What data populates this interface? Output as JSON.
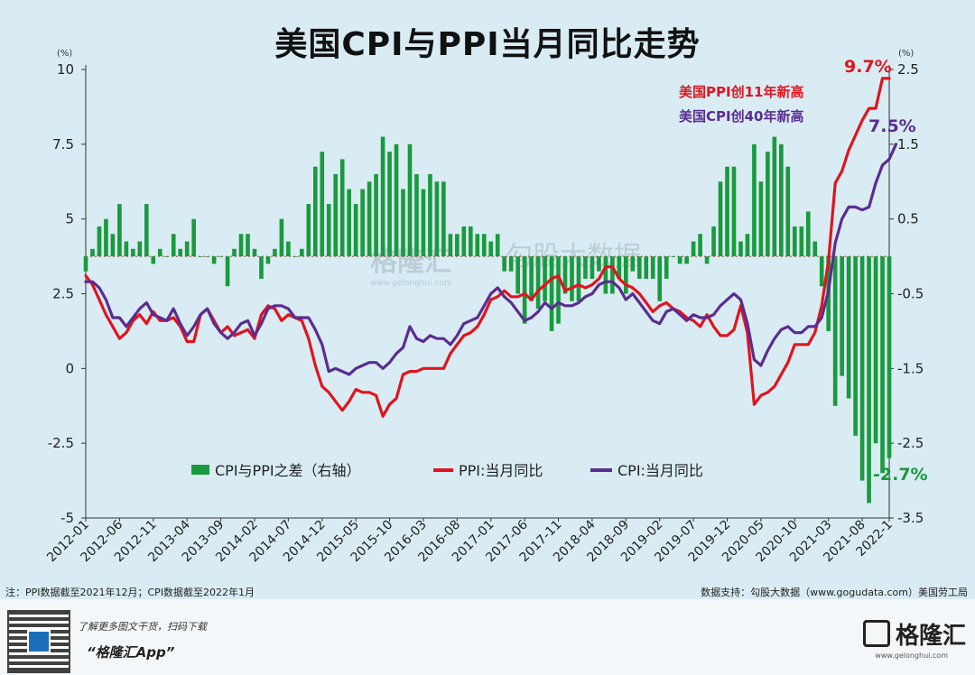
{
  "title": "美国CPI与PPI当月同比走势",
  "watermark": {
    "left": "格隆汇",
    "left_sub": "www.gelonghui.com",
    "right": "勾股大数据"
  },
  "left_axis": {
    "unit": "(%)",
    "ticks": [
      {
        "v": 10,
        "label": "10"
      },
      {
        "v": 7.5,
        "label": "7.5"
      },
      {
        "v": 5,
        "label": "5"
      },
      {
        "v": 2.5,
        "label": "2.5"
      },
      {
        "v": 0,
        "label": "0"
      },
      {
        "v": -2.5,
        "label": "-2.5"
      },
      {
        "v": -5,
        "label": "-5"
      }
    ]
  },
  "right_axis": {
    "unit": "(%)",
    "ticks": [
      {
        "v": 2.5,
        "label": "2.5"
      },
      {
        "v": 1.5,
        "label": "1.5"
      },
      {
        "v": 0.5,
        "label": "0.5"
      },
      {
        "v": -0.5,
        "label": "-0.5"
      },
      {
        "v": -1.5,
        "label": "-1.5"
      },
      {
        "v": -2.5,
        "label": "-2.5"
      },
      {
        "v": -3.5,
        "label": "-3.5"
      }
    ]
  },
  "annotations": {
    "ppi_end": "9.7%",
    "cpi_end": "7.5%",
    "diff_end": "-2.7%",
    "ppi_note": "美国PPI创11年新高",
    "cpi_note": "美国CPI创40年新高"
  },
  "note": "注：PPI数据截至2021年12月；CPI数据截至2022年1月",
  "source": "数据支持：勾股大数据（www.gogudata.com）美国劳工局",
  "footer": {
    "promo_line1": "了解更多图文干货，扫码下载",
    "promo_line2": "“格隆汇App”",
    "brand": "格隆汇",
    "brand_url": "www.gelonghui.com"
  },
  "colors": {
    "ppi": "#e0141e",
    "cpi": "#5a2d91",
    "diff": "#1a9a3e",
    "background": "#d9ecf3"
  },
  "chart_data": {
    "type": "line",
    "x_axis_labels": [
      "2012-01",
      "2012-06",
      "2012-11",
      "2013-04",
      "2013-09",
      "2014-02",
      "2014-07",
      "2014-12",
      "2015-05",
      "2015-10",
      "2016-03",
      "2016-08",
      "2017-01",
      "2017-06",
      "2017-11",
      "2018-04",
      "2018-09",
      "2019-02",
      "2019-07",
      "2019-12",
      "2020-05",
      "2020-10",
      "2021-03",
      "2021-08",
      "2022-1"
    ],
    "left_ylim": [
      -5,
      10
    ],
    "right_ylim": [
      -3.5,
      2.5
    ],
    "legend": [
      "CPI与PPI之差（右轴）",
      "PPI:当月同比",
      "CPI:当月同比"
    ],
    "legend_position": "bottom-center",
    "grid": false,
    "series": [
      {
        "name": "PPI:当月同比",
        "axis": "left",
        "start": "2012-01",
        "values": [
          3.1,
          2.8,
          2.3,
          1.8,
          1.4,
          1.0,
          1.2,
          1.6,
          1.8,
          1.5,
          1.9,
          1.6,
          1.6,
          1.7,
          1.4,
          0.9,
          0.9,
          1.8,
          2.0,
          1.6,
          1.2,
          1.4,
          1.1,
          1.2,
          1.3,
          1.0,
          1.8,
          2.1,
          2.0,
          1.6,
          1.8,
          1.7,
          1.6,
          1.0,
          0.1,
          -0.6,
          -0.8,
          -1.1,
          -1.4,
          -1.1,
          -0.7,
          -0.8,
          -0.8,
          -0.9,
          -1.6,
          -1.2,
          -1.0,
          -0.2,
          -0.1,
          -0.1,
          0.0,
          0.0,
          0.0,
          0.0,
          0.5,
          0.8,
          1.1,
          1.2,
          1.4,
          1.8,
          2.3,
          2.4,
          2.6,
          2.4,
          2.4,
          2.5,
          2.3,
          2.6,
          2.8,
          3.0,
          3.1,
          2.6,
          2.7,
          2.8,
          2.7,
          2.8,
          3.0,
          3.4,
          3.4,
          3.0,
          2.8,
          2.7,
          2.5,
          2.2,
          1.9,
          2.1,
          2.2,
          2.0,
          1.9,
          1.7,
          1.6,
          1.4,
          1.8,
          1.4,
          1.1,
          1.1,
          1.3,
          2.1,
          1.2,
          -1.2,
          -0.9,
          -0.8,
          -0.6,
          -0.2,
          0.2,
          0.8,
          0.8,
          0.8,
          1.2,
          2.1,
          3.6,
          6.2,
          6.6,
          7.3,
          7.8,
          8.3,
          8.7,
          8.7,
          9.7,
          9.7
        ]
      },
      {
        "name": "CPI:当月同比",
        "axis": "left",
        "start": "2012-01",
        "values": [
          2.9,
          2.9,
          2.7,
          2.3,
          1.7,
          1.7,
          1.4,
          1.7,
          2.0,
          2.2,
          1.8,
          1.7,
          1.6,
          2.0,
          1.5,
          1.1,
          1.4,
          1.8,
          2.0,
          1.5,
          1.2,
          1.0,
          1.2,
          1.5,
          1.6,
          1.1,
          1.5,
          2.0,
          2.1,
          2.1,
          2.0,
          1.7,
          1.7,
          1.7,
          1.3,
          0.8,
          -0.1,
          0.0,
          -0.1,
          -0.2,
          0.0,
          0.1,
          0.2,
          0.2,
          0.0,
          0.2,
          0.5,
          0.7,
          1.4,
          1.0,
          0.9,
          1.1,
          1.0,
          1.0,
          0.8,
          1.1,
          1.5,
          1.6,
          1.7,
          2.1,
          2.5,
          2.7,
          2.4,
          2.2,
          1.9,
          1.6,
          1.7,
          1.9,
          2.2,
          2.0,
          2.2,
          2.1,
          2.1,
          2.2,
          2.4,
          2.5,
          2.8,
          2.9,
          2.9,
          2.7,
          2.3,
          2.5,
          2.2,
          1.9,
          1.6,
          1.5,
          1.9,
          2.0,
          1.8,
          1.6,
          1.8,
          1.7,
          1.7,
          1.8,
          2.1,
          2.3,
          2.5,
          2.3,
          1.5,
          0.3,
          0.1,
          0.6,
          1.0,
          1.3,
          1.4,
          1.2,
          1.2,
          1.4,
          1.4,
          1.7,
          2.6,
          4.2,
          5.0,
          5.4,
          5.4,
          5.3,
          5.4,
          6.2,
          6.8,
          7.0,
          7.5
        ]
      },
      {
        "name": "CPI与PPI之差（右轴）",
        "axis": "right",
        "kind": "bar",
        "start": "2012-01",
        "values": [
          -0.2,
          0.1,
          0.4,
          0.5,
          0.3,
          0.7,
          0.2,
          0.1,
          0.2,
          0.7,
          -0.1,
          0.1,
          0.0,
          0.3,
          0.1,
          0.2,
          0.5,
          0.0,
          0.0,
          -0.1,
          0.0,
          -0.4,
          0.1,
          0.3,
          0.3,
          0.1,
          -0.3,
          -0.1,
          0.1,
          0.5,
          0.2,
          0.0,
          0.1,
          0.7,
          1.2,
          1.4,
          0.7,
          1.1,
          1.3,
          0.9,
          0.7,
          0.9,
          1.0,
          1.1,
          1.6,
          1.4,
          1.5,
          0.9,
          1.5,
          1.1,
          0.9,
          1.1,
          1.0,
          1.0,
          0.3,
          0.3,
          0.4,
          0.4,
          0.3,
          0.3,
          0.2,
          0.3,
          -0.2,
          -0.2,
          -0.5,
          -0.9,
          -0.6,
          -0.7,
          -0.6,
          -1.0,
          -0.9,
          -0.5,
          -0.6,
          -0.6,
          -0.3,
          -0.3,
          -0.2,
          -0.5,
          -0.5,
          -0.3,
          -0.5,
          -0.2,
          -0.3,
          -0.3,
          -0.3,
          -0.6,
          -0.3,
          0.0,
          -0.1,
          -0.1,
          0.2,
          0.3,
          -0.1,
          0.4,
          1.0,
          1.2,
          1.2,
          0.2,
          0.3,
          1.5,
          1.0,
          1.4,
          1.6,
          1.5,
          1.2,
          0.4,
          0.4,
          0.6,
          0.2,
          -0.4,
          -1.0,
          -2.0,
          -1.6,
          -1.9,
          -2.4,
          -3.0,
          -3.3,
          -2.5,
          -2.9,
          -2.7
        ]
      }
    ]
  }
}
